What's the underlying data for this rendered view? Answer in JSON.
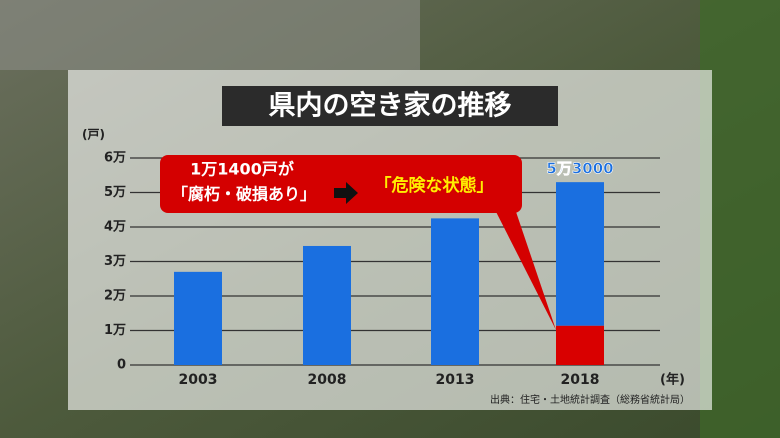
{
  "chart_data": {
    "type": "stacked_bar",
    "title": "県内の空き家の推移",
    "y_unit": "(戸)",
    "x_unit": "(年)",
    "categories": [
      "2003",
      "2008",
      "2013",
      "2018"
    ],
    "series": [
      {
        "color": "#d90000",
        "values": [
          null,
          null,
          null,
          11400
        ]
      },
      {
        "color": "#1a6fe0",
        "values": [
          27000,
          34500,
          42500,
          41600
        ]
      }
    ],
    "totals": [
      null,
      null,
      null,
      53000
    ],
    "total_labels": [
      null,
      null,
      null,
      "5万3000"
    ],
    "ylim": [
      0,
      60000
    ],
    "yticks": [
      0,
      {
        "value": 10000,
        "label": "1万"
      },
      {
        "value": 20000,
        "label": "2万"
      },
      {
        "value": 30000,
        "label": "3万"
      },
      {
        "value": 40000,
        "label": "4万"
      },
      {
        "value": 50000,
        "label": "5万"
      },
      {
        "value": 60000,
        "label": "6万"
      }
    ],
    "grid": true,
    "callout": {
      "line1": "1万1400戸が",
      "line2": "「腐朽・破損あり」",
      "line3": "「危険な状態」"
    },
    "source": "出典：住宅・土地統計調査（総務省統計局）"
  }
}
